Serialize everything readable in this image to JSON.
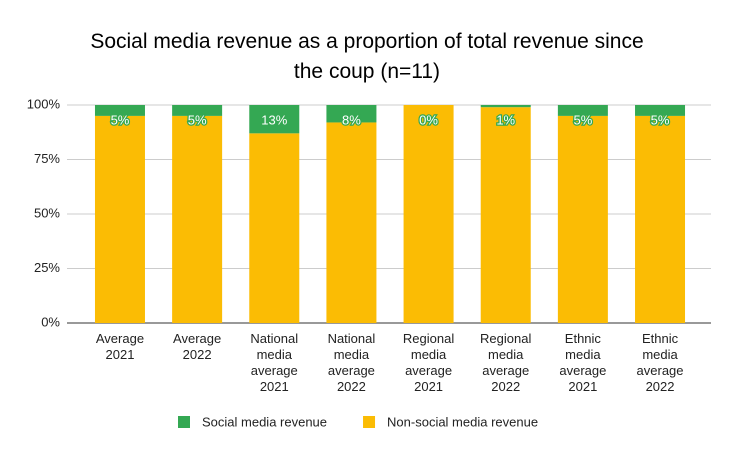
{
  "chart_data": {
    "type": "stacked_bar",
    "title": "Social media revenue as a proportion of total revenue since the coup (n=11)",
    "categories": [
      "Average 2021",
      "Average 2022",
      "National media average 2021",
      "National media average 2022",
      "Regional media average 2021",
      "Regional media average 2022",
      "Ethnic media average 2021",
      "Ethnic media average 2022"
    ],
    "series": [
      {
        "name": "Social media revenue",
        "color": "#34a853",
        "values": [
          5,
          5,
          13,
          8,
          0,
          1,
          5,
          5
        ],
        "value_labels": [
          "5%",
          "5%",
          "13%",
          "8%",
          "0%",
          "1%",
          "5%",
          "5%"
        ]
      },
      {
        "name": "Non-social media revenue",
        "color": "#fbbc04",
        "values": [
          95,
          95,
          87,
          92,
          100,
          99,
          95,
          95
        ]
      }
    ],
    "ylim": [
      0,
      100
    ],
    "yticks": [
      {
        "value": 0,
        "label": "0%"
      },
      {
        "value": 25,
        "label": "25%"
      },
      {
        "value": 50,
        "label": "50%"
      },
      {
        "value": 75,
        "label": "75%"
      },
      {
        "value": 100,
        "label": "100%"
      }
    ],
    "grid": true,
    "legend": "bottom"
  }
}
